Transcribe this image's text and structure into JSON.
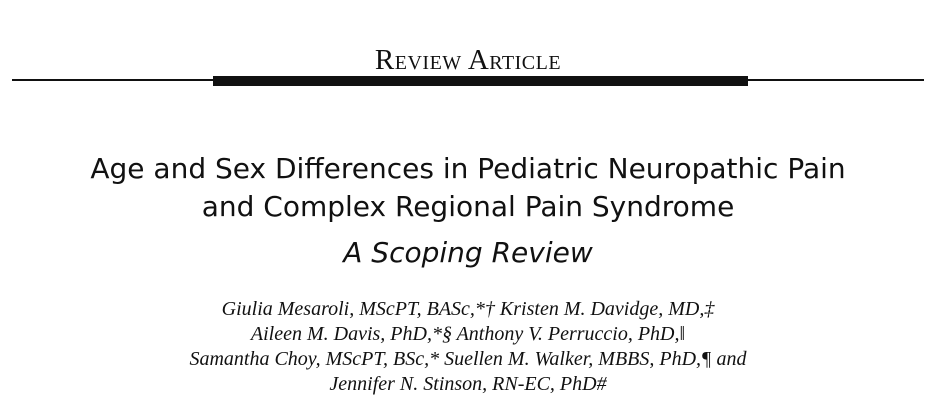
{
  "header": {
    "section": "Review Article"
  },
  "title": {
    "lines": [
      "Age and Sex Differences in Pediatric Neuropathic Pain",
      "and Complex Regional Pain Syndrome"
    ],
    "subtitle": "A Scoping Review"
  },
  "authors": {
    "lines": [
      "Giulia Mesaroli, MScPT, BASc,*† Kristen M. Davidge, MD,‡",
      "Aileen M. Davis, PhD,*§ Anthony V. Perruccio, PhD,‖",
      "Samantha Choy, MScPT, BSc,* Suellen M. Walker, MBBS, PhD,¶ and",
      "Jennifer N. Stinson, RN-EC, PhD#"
    ]
  }
}
